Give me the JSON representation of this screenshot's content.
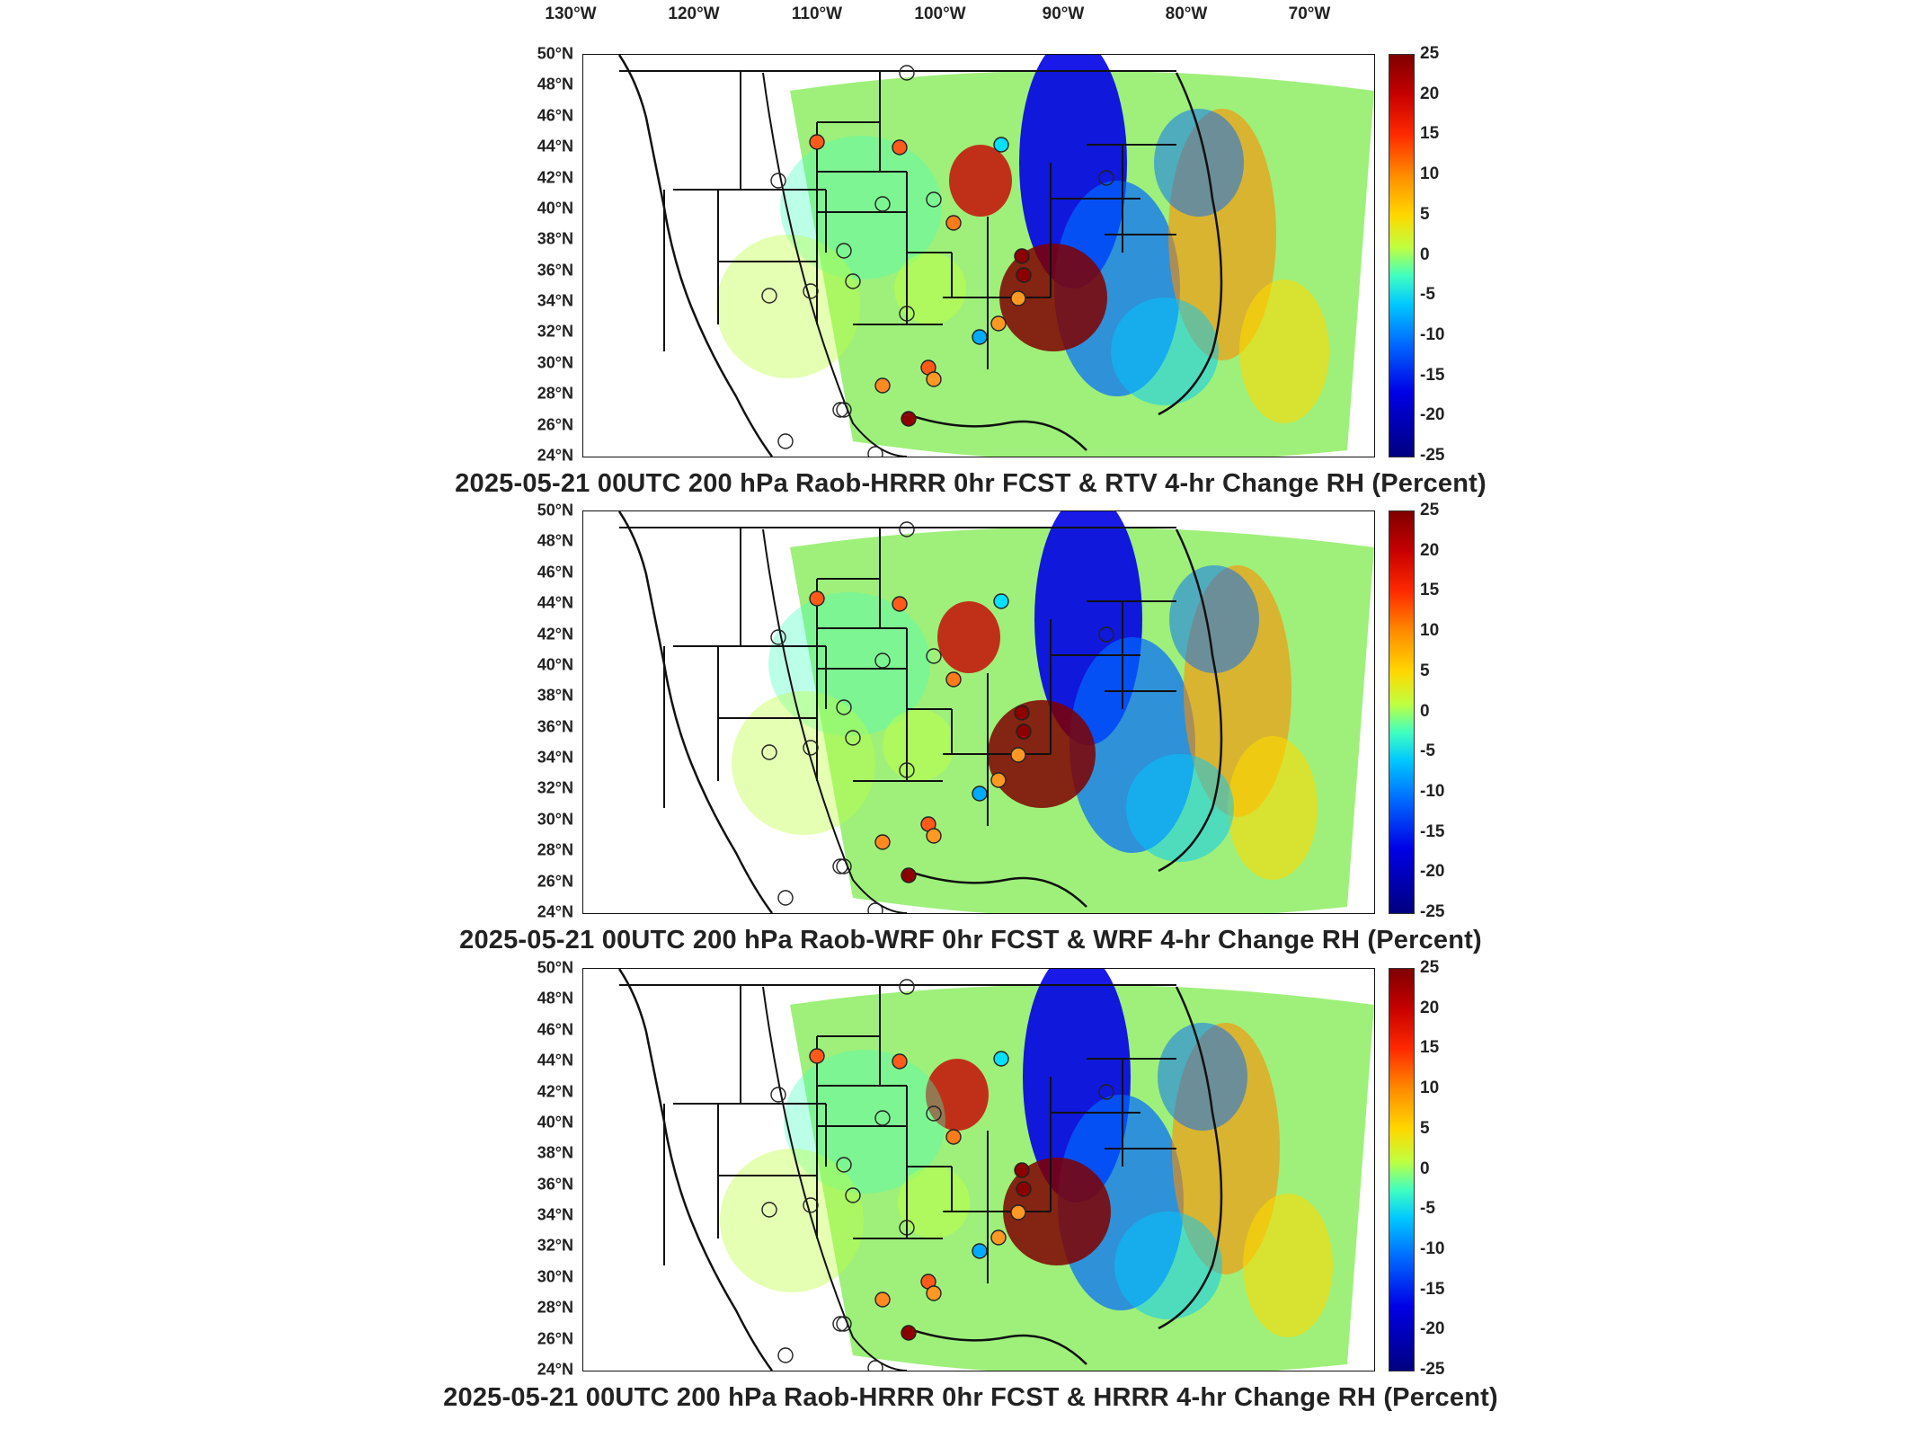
{
  "longitude_labels": [
    "130°W",
    "120°W",
    "110°W",
    "100°W",
    "90°W",
    "80°W",
    "70°W"
  ],
  "latitude_labels": [
    "50°N",
    "48°N",
    "46°N",
    "44°N",
    "42°N",
    "40°N",
    "38°N",
    "36°N",
    "34°N",
    "32°N",
    "30°N",
    "28°N",
    "26°N",
    "24°N"
  ],
  "colorbar": {
    "ticks": [
      "25",
      "20",
      "15",
      "10",
      "5",
      "0",
      "-5",
      "-10",
      "-15",
      "-20",
      "-25"
    ],
    "range": [
      -25,
      25
    ],
    "colors": [
      "#7f0000",
      "#c80000",
      "#ff2a00",
      "#ff8c00",
      "#ffd800",
      "#bfff40",
      "#40ffc0",
      "#00c8ff",
      "#0068ff",
      "#0000e6",
      "#000080"
    ]
  },
  "panels": [
    {
      "title": "2025-05-21 00UTC 200 hPa Raob-HRRR 0hr FCST & RTV 4-hr Change RH (Percent)",
      "map": "rtv-change-map"
    },
    {
      "title": "2025-05-21 00UTC 200 hPa Raob-WRF 0hr FCST & WRF 4-hr Change RH (Percent)",
      "map": "wrf-change-map"
    },
    {
      "title": "2025-05-21 00UTC 200 hPa Raob-HRRR 0hr FCST & HRRR 4-hr Change RH (Percent)",
      "map": "hrrr-change-map"
    }
  ]
}
